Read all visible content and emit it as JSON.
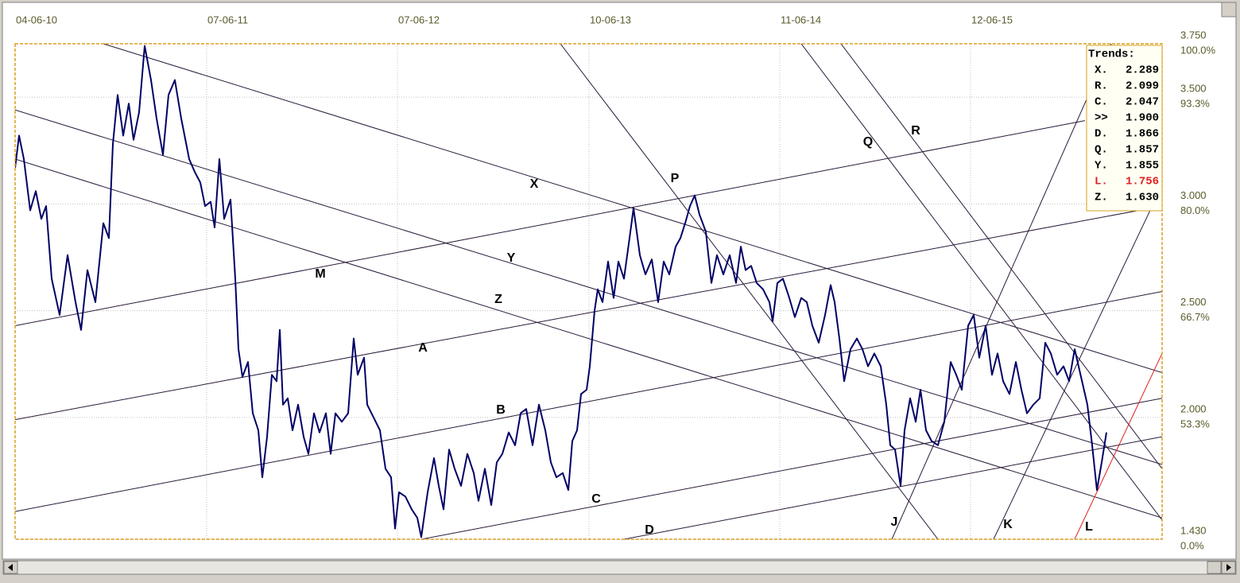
{
  "chart_data": {
    "type": "line",
    "xlim": [
      0,
      1443
    ],
    "ylim": [
      1.43,
      3.75
    ],
    "xticks": [
      {
        "value": 0,
        "label": "04-06-10"
      },
      {
        "value": 241,
        "label": "07-06-11"
      },
      {
        "value": 481,
        "label": "07-06-12"
      },
      {
        "value": 722,
        "label": "10-06-13"
      },
      {
        "value": 962,
        "label": "11-06-14"
      },
      {
        "value": 1202,
        "label": "12-06-15"
      }
    ],
    "yticks": [
      {
        "value": 3.75,
        "label": "3.750"
      },
      {
        "value": 3.5,
        "label": "3.500"
      },
      {
        "value": 3,
        "label": "3.000"
      },
      {
        "value": 2.5,
        "label": "2.500"
      },
      {
        "value": 2,
        "label": "2.000"
      },
      {
        "value": 1.43,
        "label": "1.430"
      }
    ],
    "ytick_percents": [
      "100.0%",
      "93.3%",
      "80.0%",
      "66.7%",
      "53.3%",
      "0.0%"
    ],
    "grid": true,
    "series": [
      {
        "color": "#000066",
        "x": [
          0,
          5,
          11,
          19,
          26,
          33,
          39,
          46,
          56,
          66,
          76,
          83,
          91,
          101,
          111,
          118,
          123,
          129,
          136,
          143,
          149,
          156,
          163,
          171,
          178,
          186,
          193,
          201,
          209,
          219,
          226,
          233,
          239,
          246,
          251,
          257,
          263,
          271,
          277,
          281,
          286,
          293,
          299,
          306,
          311,
          317,
          323,
          329,
          333,
          337,
          343,
          349,
          356,
          363,
          369,
          376,
          383,
          391,
          397,
          403,
          411,
          419,
          426,
          431,
          439,
          443,
          451,
          459,
          466,
          473,
          478,
          483,
          491,
          499,
          506,
          511,
          519,
          527,
          533,
          539,
          546,
          553,
          561,
          569,
          577,
          583,
          591,
          599,
          606,
          613,
          621,
          629,
          636,
          643,
          651,
          659,
          667,
          674,
          681,
          689,
          696,
          701,
          707,
          712,
          719,
          723,
          729,
          733,
          739,
          746,
          753,
          759,
          766,
          773,
          778,
          786,
          793,
          801,
          809,
          816,
          823,
          831,
          837,
          843,
          849,
          855,
          861,
          869,
          876,
          883,
          891,
          899,
          907,
          913,
          919,
          926,
          933,
          941,
          949,
          953,
          959,
          966,
          974,
          981,
          989,
          996,
          1003,
          1011,
          1019,
          1026,
          1031,
          1037,
          1043,
          1051,
          1059,
          1066,
          1073,
          1081,
          1089,
          1096,
          1101,
          1107,
          1114,
          1119,
          1126,
          1133,
          1139,
          1146,
          1153,
          1161,
          1169,
          1177,
          1184,
          1191,
          1199,
          1206,
          1213,
          1221,
          1229,
          1236,
          1243,
          1251,
          1259,
          1266,
          1273,
          1281,
          1289,
          1296,
          1303,
          1311,
          1319,
          1326,
          1333,
          1341,
          1349,
          1355,
          1361,
          1367,
          1373
        ],
        "values": [
          3.17,
          3.32,
          3.21,
          2.97,
          3.06,
          2.93,
          2.99,
          2.65,
          2.48,
          2.76,
          2.54,
          2.41,
          2.69,
          2.54,
          2.91,
          2.84,
          3.28,
          3.51,
          3.32,
          3.47,
          3.3,
          3.43,
          3.74,
          3.58,
          3.4,
          3.23,
          3.51,
          3.58,
          3.4,
          3.21,
          3.15,
          3.1,
          2.99,
          3.01,
          2.89,
          3.21,
          2.93,
          3.02,
          2.65,
          2.32,
          2.19,
          2.26,
          2.02,
          1.94,
          1.72,
          1.91,
          2.2,
          2.17,
          2.41,
          2.06,
          2.09,
          1.94,
          2.06,
          1.91,
          1.83,
          2.02,
          1.93,
          2.02,
          1.83,
          2.02,
          1.98,
          2.02,
          2.37,
          2.2,
          2.28,
          2.06,
          2.0,
          1.94,
          1.76,
          1.72,
          1.48,
          1.65,
          1.63,
          1.57,
          1.53,
          1.44,
          1.65,
          1.81,
          1.68,
          1.57,
          1.85,
          1.76,
          1.68,
          1.83,
          1.74,
          1.61,
          1.76,
          1.59,
          1.79,
          1.83,
          1.93,
          1.87,
          2.02,
          2.04,
          1.87,
          2.06,
          1.94,
          1.79,
          1.72,
          1.74,
          1.66,
          1.89,
          1.94,
          2.11,
          2.13,
          2.24,
          2.5,
          2.6,
          2.54,
          2.73,
          2.56,
          2.73,
          2.65,
          2.84,
          2.98,
          2.76,
          2.67,
          2.74,
          2.54,
          2.73,
          2.67,
          2.8,
          2.84,
          2.91,
          2.99,
          3.04,
          2.95,
          2.87,
          2.63,
          2.76,
          2.67,
          2.76,
          2.63,
          2.8,
          2.69,
          2.71,
          2.63,
          2.6,
          2.54,
          2.45,
          2.63,
          2.65,
          2.56,
          2.47,
          2.56,
          2.54,
          2.43,
          2.35,
          2.48,
          2.62,
          2.54,
          2.37,
          2.17,
          2.32,
          2.37,
          2.32,
          2.24,
          2.3,
          2.24,
          2.06,
          1.87,
          1.85,
          1.68,
          1.94,
          2.09,
          1.98,
          2.13,
          1.94,
          1.89,
          1.87,
          1.98,
          2.26,
          2.2,
          2.13,
          2.43,
          2.48,
          2.28,
          2.43,
          2.2,
          2.3,
          2.17,
          2.11,
          2.26,
          2.13,
          2.02,
          2.06,
          2.09,
          2.35,
          2.3,
          2.2,
          2.24,
          2.17,
          2.32,
          2.19,
          2.06,
          1.87,
          1.66,
          1.79,
          1.93
        ]
      }
    ],
    "trend_lines": [
      {
        "name": "X",
        "color": "#2a1a3a",
        "x": [
          111,
          1443
        ],
        "values": [
          3.75,
          2.21
        ]
      },
      {
        "name": "Y",
        "color": "#2a1a3a",
        "x": [
          0,
          1443
        ],
        "values": [
          3.44,
          1.78
        ]
      },
      {
        "name": "Z",
        "color": "#2a1a3a",
        "x": [
          0,
          1443
        ],
        "values": [
          3.21,
          1.53
        ]
      },
      {
        "name": "M",
        "color": "#2a1a3a",
        "x": [
          0,
          1346
        ],
        "values": [
          2.43,
          3.39
        ]
      },
      {
        "name": "A",
        "color": "#2a1a3a",
        "x": [
          0,
          1443
        ],
        "values": [
          1.99,
          2.99
        ]
      },
      {
        "name": "B",
        "color": "#2a1a3a",
        "x": [
          0,
          1443
        ],
        "values": [
          1.56,
          2.59
        ]
      },
      {
        "name": "C",
        "color": "#2a1a3a",
        "x": [
          511,
          1443
        ],
        "values": [
          1.43,
          2.09
        ]
      },
      {
        "name": "D",
        "color": "#2a1a3a",
        "x": [
          766,
          1443
        ],
        "values": [
          1.43,
          1.91
        ]
      },
      {
        "name": "P",
        "color": "#2a1a3a",
        "x": [
          686,
          1161
        ],
        "values": [
          3.75,
          1.43
        ]
      },
      {
        "name": "Q",
        "color": "#2a1a3a",
        "x": [
          989,
          1443
        ],
        "values": [
          3.75,
          1.52
        ]
      },
      {
        "name": "R",
        "color": "#2a1a3a",
        "x": [
          1039,
          1443
        ],
        "values": [
          3.75,
          1.76
        ]
      },
      {
        "name": "J",
        "color": "#2a1a3a",
        "x": [
          1103,
          1379
        ],
        "values": [
          1.43,
          3.75
        ]
      },
      {
        "name": "K",
        "color": "#2a1a3a",
        "x": [
          1231,
          1428
        ],
        "values": [
          1.43,
          2.97
        ]
      },
      {
        "name": "L",
        "color": "#e02020",
        "x": [
          1333,
          1443
        ],
        "values": [
          1.43,
          2.3
        ]
      }
    ],
    "trends_box": {
      "title": "Trends:",
      "items": [
        {
          "name": "X.",
          "value": "2.289",
          "color": "#000000"
        },
        {
          "name": "R.",
          "value": "2.099",
          "color": "#000000"
        },
        {
          "name": "C.",
          "value": "2.047",
          "color": "#000000"
        },
        {
          "name": ">>",
          "value": "1.900",
          "color": "#000000"
        },
        {
          "name": "D.",
          "value": "1.866",
          "color": "#000000"
        },
        {
          "name": "Q.",
          "value": "1.857",
          "color": "#000000"
        },
        {
          "name": "Y.",
          "value": "1.855",
          "color": "#000000"
        },
        {
          "name": "L.",
          "value": "1.756",
          "color": "#e02020"
        },
        {
          "name": "Z.",
          "value": "1.630",
          "color": "#000000"
        }
      ]
    }
  }
}
